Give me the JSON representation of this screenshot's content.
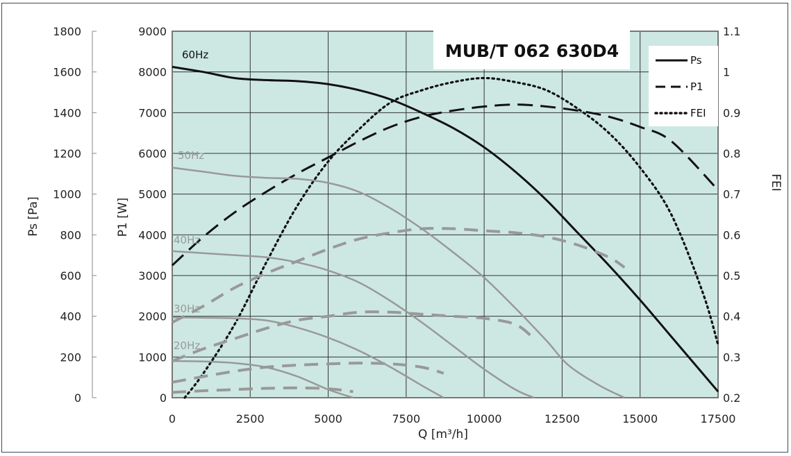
{
  "chart_data": {
    "type": "line",
    "title": "MUB/T 062 630D4",
    "xlabel": "Q [m³/h]",
    "x_ticks": [
      "0",
      "2500",
      "5000",
      "7500",
      "10000",
      "12500",
      "15000",
      "17500"
    ],
    "xlim": [
      0,
      17500
    ],
    "y_left_outer": {
      "label": "Ps [Pa]",
      "range": [
        0,
        1800
      ],
      "ticks": [
        "0",
        "200",
        "400",
        "600",
        "800",
        "1000",
        "1200",
        "1400",
        "1600",
        "1800"
      ]
    },
    "y_left_inner": {
      "label": "P1 [W]",
      "range": [
        0,
        9000
      ],
      "ticks": [
        "0",
        "1000",
        "2000",
        "3000",
        "4000",
        "5000",
        "6000",
        "7000",
        "8000",
        "9000"
      ]
    },
    "y_right": {
      "label": "FEI",
      "range": [
        0.2,
        1.1
      ],
      "ticks": [
        "0.2",
        "0.3",
        "0.4",
        "0.5",
        "0.6",
        "0.7",
        "0.8",
        "0.9",
        "1",
        "1.1"
      ]
    },
    "grid": true,
    "legend_position": "top-right",
    "legend": [
      {
        "name": "Ps",
        "style": "solid"
      },
      {
        "name": "P1",
        "style": "dashed"
      },
      {
        "name": "FEI",
        "style": "dotted"
      }
    ],
    "series": [
      {
        "label": "60Hz",
        "color": "#111111",
        "axis": "Ps",
        "style": "solid",
        "x": [
          0,
          1000,
          2000,
          3000,
          4000,
          5000,
          6000,
          7000,
          8000,
          9000,
          10000,
          11000,
          12000,
          13000,
          14000,
          15000,
          16000,
          17500
        ],
        "y": [
          1625,
          1600,
          1570,
          1560,
          1555,
          1540,
          1510,
          1465,
          1400,
          1325,
          1230,
          1110,
          970,
          810,
          650,
          480,
          300,
          30
        ]
      },
      {
        "label": "60Hz",
        "color": "#111111",
        "axis": "P1",
        "style": "dashed",
        "x": [
          0,
          1000,
          2000,
          3000,
          4000,
          5000,
          6000,
          7000,
          8000,
          9000,
          10000,
          11000,
          12000,
          13000,
          14000,
          15000,
          16000,
          17500
        ],
        "y": [
          3250,
          3950,
          4550,
          5050,
          5500,
          5900,
          6300,
          6650,
          6900,
          7050,
          7150,
          7200,
          7150,
          7050,
          6900,
          6650,
          6300,
          5100
        ]
      },
      {
        "label": "60Hz",
        "color": "#111111",
        "axis": "FEI",
        "style": "dotted",
        "x": [
          400,
          1000,
          2000,
          3000,
          4000,
          5000,
          6000,
          7000,
          8000,
          9000,
          10000,
          11000,
          12000,
          13000,
          14000,
          15000,
          16000,
          17000,
          17500
        ],
        "y": [
          0.2,
          0.26,
          0.38,
          0.53,
          0.67,
          0.78,
          0.86,
          0.925,
          0.955,
          0.975,
          0.985,
          0.975,
          0.955,
          0.91,
          0.85,
          0.765,
          0.65,
          0.46,
          0.33
        ]
      },
      {
        "label": "50Hz",
        "color": "#999999",
        "axis": "Ps",
        "style": "solid",
        "x": [
          0,
          1000,
          2000,
          3000,
          4000,
          5000,
          6000,
          7000,
          8000,
          9000,
          10000,
          11000,
          12000,
          12700,
          13700,
          14500
        ],
        "y": [
          1130,
          1110,
          1090,
          1080,
          1075,
          1055,
          1010,
          930,
          830,
          715,
          590,
          440,
          280,
          160,
          60,
          0
        ]
      },
      {
        "label": "50Hz",
        "color": "#999999",
        "axis": "P1",
        "style": "dashed",
        "x": [
          0,
          1000,
          2000,
          3000,
          4000,
          5000,
          6000,
          7000,
          8000,
          9000,
          10000,
          11000,
          12000,
          13000,
          14000,
          14500
        ],
        "y": [
          1850,
          2250,
          2700,
          3050,
          3350,
          3650,
          3900,
          4050,
          4150,
          4150,
          4100,
          4050,
          3950,
          3750,
          3450,
          3200
        ]
      },
      {
        "label": "40Hz",
        "color": "#999999",
        "axis": "Ps",
        "style": "solid",
        "x": [
          0,
          1000,
          2000,
          3000,
          4000,
          5000,
          6000,
          7000,
          8000,
          9000,
          10000,
          11000,
          11600
        ],
        "y": [
          720,
          710,
          700,
          690,
          665,
          625,
          565,
          475,
          370,
          255,
          140,
          40,
          0
        ]
      },
      {
        "label": "40Hz",
        "color": "#999999",
        "axis": "P1",
        "style": "dashed",
        "x": [
          0,
          1000,
          2000,
          3000,
          4000,
          5000,
          6000,
          7000,
          8000,
          9000,
          10000,
          11000,
          11600
        ],
        "y": [
          900,
          1200,
          1450,
          1700,
          1900,
          2000,
          2100,
          2100,
          2050,
          2000,
          1950,
          1800,
          1450
        ]
      },
      {
        "label": "30Hz",
        "color": "#999999",
        "axis": "Ps",
        "style": "solid",
        "x": [
          0,
          1000,
          2000,
          3000,
          4000,
          5000,
          6000,
          7000,
          8000,
          8700
        ],
        "y": [
          395,
          393,
          390,
          380,
          345,
          295,
          230,
          150,
          60,
          0
        ]
      },
      {
        "label": "30Hz",
        "color": "#999999",
        "axis": "P1",
        "style": "dashed",
        "x": [
          0,
          1000,
          2000,
          3000,
          4000,
          5000,
          6000,
          7000,
          8000,
          8700
        ],
        "y": [
          380,
          520,
          650,
          750,
          800,
          830,
          850,
          830,
          750,
          600
        ]
      },
      {
        "label": "20Hz",
        "color": "#999999",
        "axis": "Ps",
        "style": "solid",
        "x": [
          0,
          1000,
          2000,
          3000,
          4000,
          5000,
          5800
        ],
        "y": [
          180,
          178,
          170,
          150,
          105,
          40,
          0
        ]
      },
      {
        "label": "20Hz",
        "color": "#999999",
        "axis": "P1",
        "style": "dashed",
        "x": [
          0,
          1000,
          2000,
          3000,
          4000,
          5000,
          5800
        ],
        "y": [
          130,
          170,
          200,
          230,
          240,
          220,
          150
        ]
      }
    ],
    "curve_labels": [
      {
        "text": "60Hz",
        "color": "#111111"
      },
      {
        "text": "50Hz",
        "color": "#999999"
      },
      {
        "text": "40Hz",
        "color": "#999999"
      },
      {
        "text": "30Hz",
        "color": "#999999"
      },
      {
        "text": "20Hz",
        "color": "#999999"
      }
    ],
    "colors": {
      "plot_background": "#cde8e2",
      "grid": "#333333",
      "frame": "#3b4a55"
    }
  }
}
